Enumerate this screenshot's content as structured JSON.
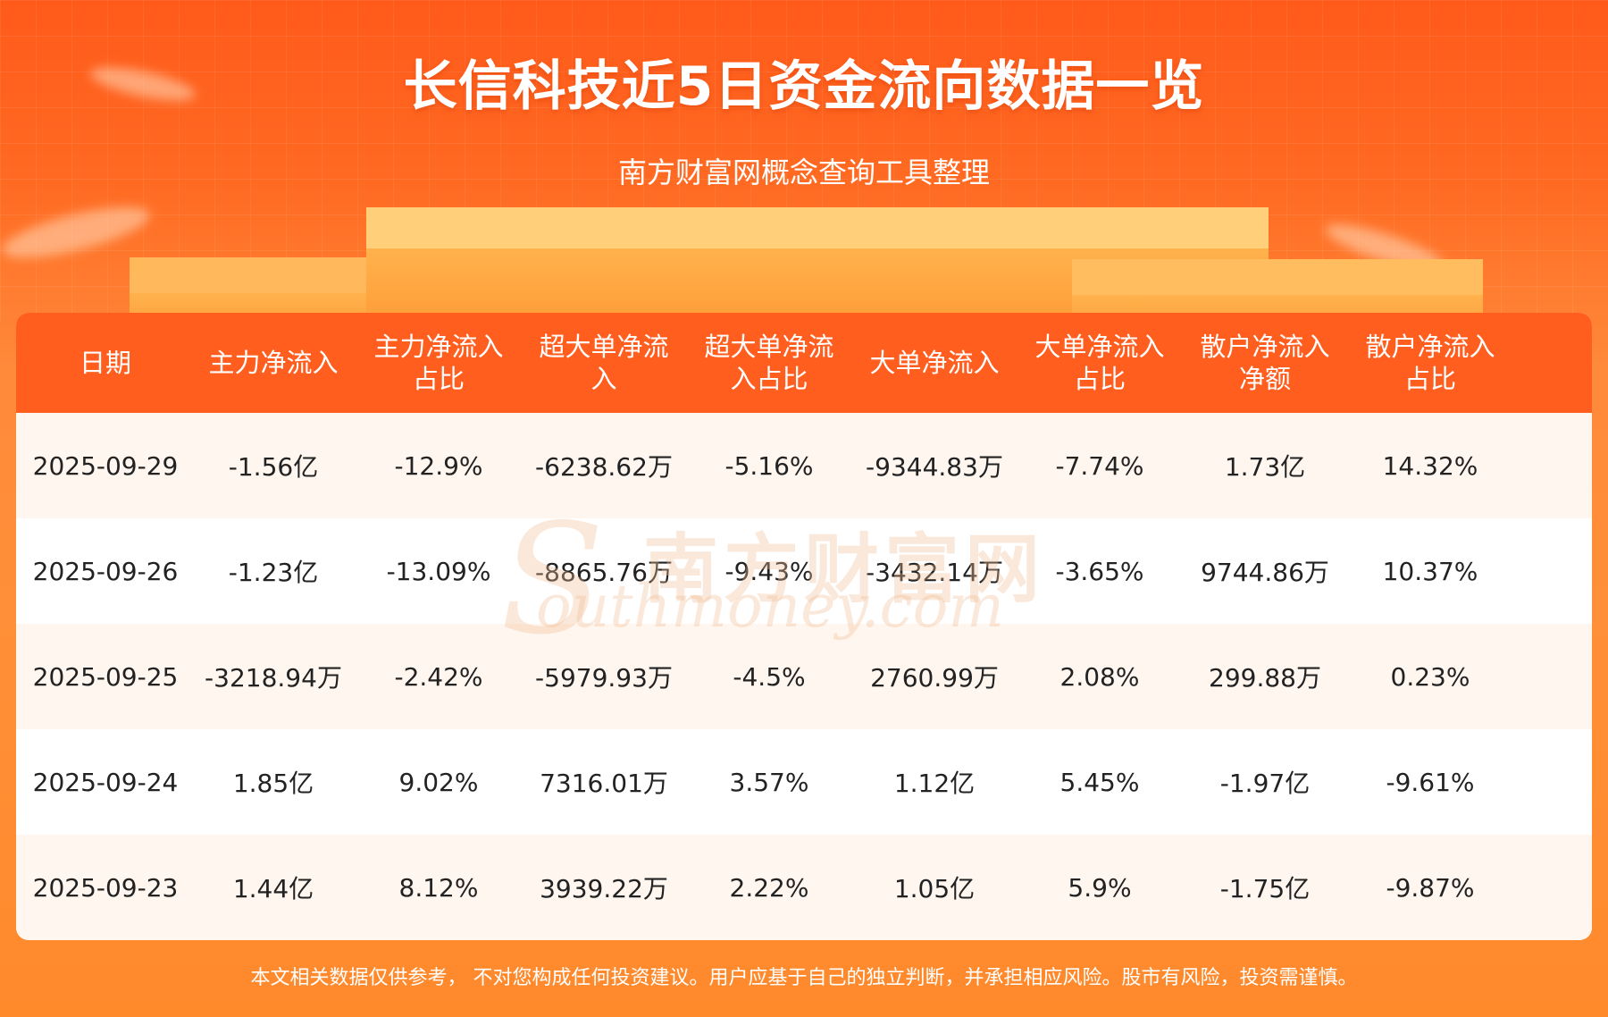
{
  "header": {
    "title": "长信科技近5日资金流向数据一览",
    "subtitle": "南方财富网概念查询工具整理"
  },
  "table": {
    "headers": [
      "日期",
      "主力净流入",
      "主力净流入\n占比",
      "超大单净流\n入",
      "超大单净流\n入占比",
      "大单净流入",
      "大单净流入\n占比",
      "散户净流入\n净额",
      "散户净流入\n占比"
    ],
    "rows": [
      [
        "2025-09-29",
        "-1.56亿",
        "-12.9%",
        "-6238.62万",
        "-5.16%",
        "-9344.83万",
        "-7.74%",
        "1.73亿",
        "14.32%"
      ],
      [
        "2025-09-26",
        "-1.23亿",
        "-13.09%",
        "-8865.76万",
        "-9.43%",
        "-3432.14万",
        "-3.65%",
        "9744.86万",
        "10.37%"
      ],
      [
        "2025-09-25",
        "-3218.94万",
        "-2.42%",
        "-5979.93万",
        "-4.5%",
        "2760.99万",
        "2.08%",
        "299.88万",
        "0.23%"
      ],
      [
        "2025-09-24",
        "1.85亿",
        "9.02%",
        "7316.01万",
        "3.57%",
        "1.12亿",
        "5.45%",
        "-1.97亿",
        "-9.61%"
      ],
      [
        "2025-09-23",
        "1.44亿",
        "8.12%",
        "3939.22万",
        "2.22%",
        "1.05亿",
        "5.9%",
        "-1.75亿",
        "-9.87%"
      ]
    ]
  },
  "watermark": {
    "cn": "南方财富网",
    "en": "outhmoney.com",
    "s": "S"
  },
  "footer": {
    "disclaimer": "本文相关数据仅供参考， 不对您构成任何投资建议。用户应基于自己的独立判断，并承担相应风险。股市有风险，投资需谨慎。"
  },
  "colors": {
    "header_bg": "#ff5e1f",
    "odd_row": "#fff6ef",
    "even_row": "#ffffff",
    "page_bg": "#ff7a2c"
  }
}
